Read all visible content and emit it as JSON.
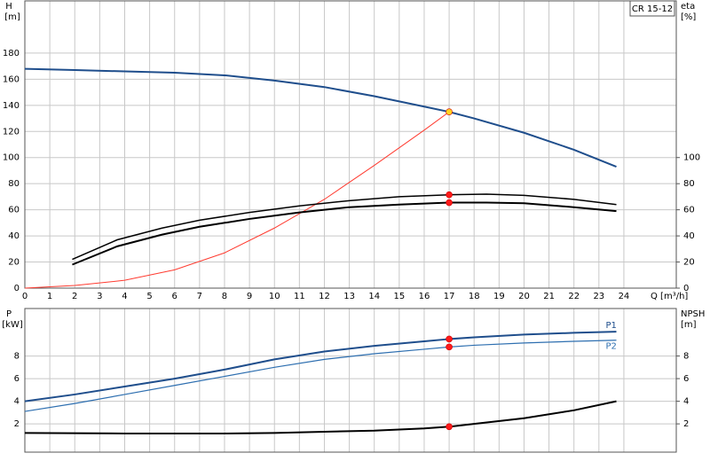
{
  "chart_data": [
    {
      "type": "line",
      "box_label": "CR 15-12",
      "y_label": "H",
      "y_unit": "[m]",
      "y2_label": "eta",
      "y2_unit": "[%]",
      "x_label": "Q [m³/h]",
      "xlim": [
        0,
        26.1
      ],
      "xticks": [
        0,
        1,
        2,
        3,
        4,
        5,
        6,
        7,
        8,
        9,
        10,
        11,
        12,
        13,
        14,
        15,
        16,
        17,
        18,
        19,
        20,
        21,
        22,
        23,
        24
      ],
      "ylim": [
        0,
        220
      ],
      "yticks": [
        0,
        20,
        40,
        60,
        80,
        100,
        120,
        140,
        160,
        180
      ],
      "y2lim": [
        0,
        220
      ],
      "y2ticks": [
        0,
        20,
        40,
        60,
        80,
        100
      ],
      "grid": true,
      "series": [
        {
          "color": "#1f4e8c",
          "width": 2,
          "x": [
            0,
            2,
            4,
            6,
            8,
            10,
            12,
            14,
            16,
            17,
            18,
            20,
            22,
            23.7
          ],
          "values": [
            168,
            167,
            166,
            165,
            163,
            159,
            154,
            147,
            139,
            135,
            130,
            119,
            106,
            93
          ]
        },
        {
          "color": "#ff3b30",
          "width": 1,
          "x": [
            0,
            2,
            4,
            6,
            8,
            10,
            12,
            14,
            16,
            17
          ],
          "values": [
            0,
            2,
            6,
            14,
            27,
            46,
            68,
            94,
            121,
            135
          ]
        },
        {
          "color": "#000000",
          "width": 1.5,
          "axis": "y2",
          "x": [
            1.9,
            3.7,
            5.5,
            7,
            9,
            11,
            13,
            15,
            17,
            18.5,
            20,
            22,
            23.7
          ],
          "values": [
            22,
            37,
            46,
            52,
            58,
            63,
            67,
            70,
            71.5,
            72,
            71,
            68,
            64
          ]
        },
        {
          "color": "#000000",
          "width": 2,
          "axis": "y2",
          "x": [
            1.9,
            3.7,
            5.5,
            7,
            9,
            11,
            13,
            15,
            17,
            18.5,
            20,
            22,
            23.7
          ],
          "values": [
            18,
            32,
            41,
            47,
            53,
            58,
            62,
            64,
            65.5,
            65.5,
            65,
            62,
            59
          ]
        }
      ],
      "points": [
        {
          "x": 17,
          "y": 135,
          "color": "#ffd21f"
        },
        {
          "x": 17,
          "y": 71.5,
          "color": "#ff1a1a",
          "axis": "y2"
        },
        {
          "x": 17,
          "y": 65.5,
          "color": "#ff1a1a",
          "axis": "y2"
        }
      ]
    },
    {
      "type": "line",
      "y_label": "P",
      "y_unit": "[kW]",
      "y2_label": "NPSH",
      "y2_unit": "[m]",
      "xlim": [
        0,
        26.1
      ],
      "xticks": [
        0,
        1,
        2,
        3,
        4,
        5,
        6,
        7,
        8,
        9,
        10,
        11,
        12,
        13,
        14,
        15,
        16,
        17,
        18,
        19,
        20,
        21,
        22,
        23,
        24
      ],
      "ylim": [
        -0.5,
        12.2
      ],
      "yticks": [
        2,
        4,
        6,
        8
      ],
      "y2lim": [
        -0.5,
        12.2
      ],
      "y2ticks": [
        2,
        4,
        6,
        8
      ],
      "grid": true,
      "series": [
        {
          "name": "P1",
          "color": "#1f4e8c",
          "width": 2,
          "x": [
            0,
            2,
            4,
            6,
            8,
            10,
            12,
            14,
            16,
            17,
            18,
            20,
            22,
            23.7
          ],
          "values": [
            4.0,
            4.6,
            5.3,
            6.0,
            6.8,
            7.7,
            8.4,
            8.9,
            9.3,
            9.5,
            9.65,
            9.9,
            10.05,
            10.15
          ]
        },
        {
          "name": "P2",
          "color": "#2e6fb0",
          "width": 1.2,
          "x": [
            0,
            2,
            4,
            6,
            8,
            10,
            12,
            14,
            16,
            17,
            18,
            20,
            22,
            23.7
          ],
          "values": [
            3.1,
            3.8,
            4.6,
            5.4,
            6.2,
            7.0,
            7.7,
            8.2,
            8.6,
            8.8,
            8.95,
            9.15,
            9.3,
            9.4
          ]
        },
        {
          "color": "#000000",
          "width": 2,
          "axis": "y2",
          "x": [
            0,
            4,
            8,
            10,
            12,
            14,
            16,
            17,
            18,
            20,
            22,
            23.7
          ],
          "values": [
            1.2,
            1.15,
            1.15,
            1.2,
            1.3,
            1.4,
            1.6,
            1.75,
            2.0,
            2.5,
            3.2,
            4.0
          ]
        }
      ],
      "points": [
        {
          "x": 17,
          "y": 9.5,
          "color": "#ff1a1a"
        },
        {
          "x": 17,
          "y": 8.8,
          "color": "#ff1a1a"
        },
        {
          "x": 17,
          "y": 1.75,
          "color": "#ff1a1a",
          "axis": "y2"
        }
      ]
    }
  ]
}
